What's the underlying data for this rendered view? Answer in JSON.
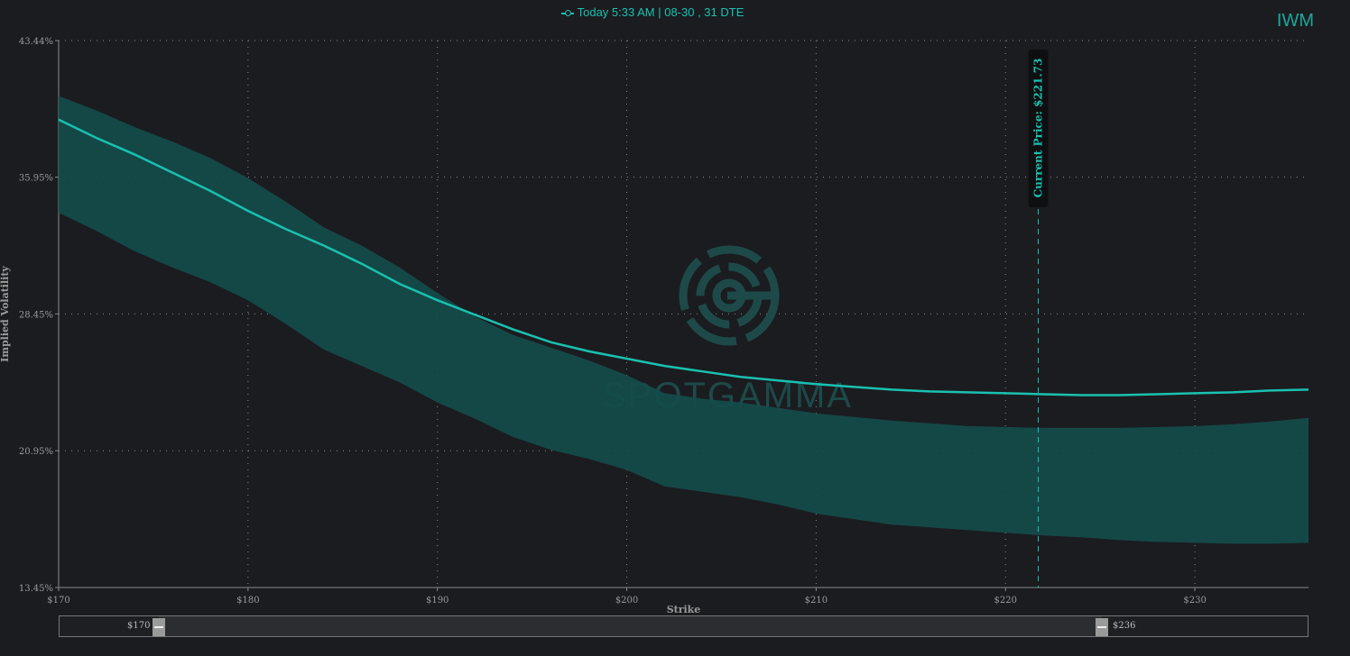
{
  "ticker": "IWM",
  "legend": {
    "label": "Today 5:33 AM | 08-30 , 31 DTE"
  },
  "colors": {
    "line": "#19c1b0",
    "band": "#134c4b",
    "grid": "#8a8a8a",
    "text": "#9a9a9a",
    "watermark": "#1d4a49"
  },
  "watermark": {
    "text": "SPOTGAMMA"
  },
  "navigator": {
    "min_label": "$170",
    "max_label": "$236"
  },
  "chart_data": {
    "type": "line",
    "xlabel": "Strike",
    "ylabel": "Implied Volatility",
    "xlim": [
      170,
      236
    ],
    "ylim": [
      13.45,
      43.44
    ],
    "x_ticks": [
      170,
      180,
      190,
      200,
      210,
      220,
      230
    ],
    "x_tick_labels": [
      "$170",
      "$180",
      "$190",
      "$200",
      "$210",
      "$220",
      "$230"
    ],
    "y_ticks": [
      13.45,
      20.95,
      28.45,
      35.95,
      43.44
    ],
    "y_tick_labels": [
      "13.45%",
      "20.95%",
      "28.45%",
      "35.95%",
      "43.44%"
    ],
    "grid": true,
    "current_price": {
      "value": 221.73,
      "label": "Current Price: $221.73"
    },
    "series": [
      {
        "values": [
          [
            170,
            39.1
          ],
          [
            172,
            38.1
          ],
          [
            174,
            37.2
          ],
          [
            176,
            36.2
          ],
          [
            178,
            35.2
          ],
          [
            180,
            34.1
          ],
          [
            182,
            33.1
          ],
          [
            184,
            32.2
          ],
          [
            186,
            31.2
          ],
          [
            188,
            30.1
          ],
          [
            190,
            29.2
          ],
          [
            192,
            28.4
          ],
          [
            194,
            27.6
          ],
          [
            196,
            26.9
          ],
          [
            198,
            26.4
          ],
          [
            200,
            26.0
          ],
          [
            202,
            25.6
          ],
          [
            204,
            25.3
          ],
          [
            206,
            25.0
          ],
          [
            208,
            24.8
          ],
          [
            210,
            24.6
          ],
          [
            212,
            24.45
          ],
          [
            214,
            24.3
          ],
          [
            216,
            24.2
          ],
          [
            218,
            24.15
          ],
          [
            220,
            24.1
          ],
          [
            222,
            24.05
          ],
          [
            224,
            24.0
          ],
          [
            226,
            24.0
          ],
          [
            228,
            24.05
          ],
          [
            230,
            24.1
          ],
          [
            232,
            24.15
          ],
          [
            234,
            24.25
          ],
          [
            236,
            24.3
          ]
        ]
      }
    ],
    "band": {
      "upper": [
        [
          170,
          40.4
        ],
        [
          172,
          39.6
        ],
        [
          174,
          38.7
        ],
        [
          176,
          37.9
        ],
        [
          178,
          37.0
        ],
        [
          180,
          35.9
        ],
        [
          182,
          34.6
        ],
        [
          184,
          33.2
        ],
        [
          186,
          32.2
        ],
        [
          188,
          31.0
        ],
        [
          190,
          29.6
        ],
        [
          192,
          28.3
        ],
        [
          194,
          27.3
        ],
        [
          196,
          26.6
        ],
        [
          198,
          25.9
        ],
        [
          200,
          25.1
        ],
        [
          202,
          24.1
        ],
        [
          204,
          23.8
        ],
        [
          206,
          23.6
        ],
        [
          208,
          23.3
        ],
        [
          210,
          23.0
        ],
        [
          212,
          22.8
        ],
        [
          214,
          22.6
        ],
        [
          216,
          22.45
        ],
        [
          218,
          22.3
        ],
        [
          220,
          22.25
        ],
        [
          222,
          22.2
        ],
        [
          224,
          22.2
        ],
        [
          226,
          22.2
        ],
        [
          228,
          22.25
        ],
        [
          230,
          22.3
        ],
        [
          232,
          22.4
        ],
        [
          234,
          22.55
        ],
        [
          236,
          22.75
        ]
      ],
      "lower": [
        [
          170,
          34.0
        ],
        [
          172,
          33.0
        ],
        [
          174,
          31.9
        ],
        [
          176,
          31.0
        ],
        [
          178,
          30.2
        ],
        [
          180,
          29.2
        ],
        [
          182,
          27.9
        ],
        [
          184,
          26.5
        ],
        [
          186,
          25.6
        ],
        [
          188,
          24.7
        ],
        [
          190,
          23.6
        ],
        [
          192,
          22.7
        ],
        [
          194,
          21.7
        ],
        [
          196,
          21.0
        ],
        [
          198,
          20.5
        ],
        [
          200,
          19.9
        ],
        [
          202,
          19.0
        ],
        [
          204,
          18.7
        ],
        [
          206,
          18.4
        ],
        [
          208,
          18.0
        ],
        [
          210,
          17.5
        ],
        [
          212,
          17.2
        ],
        [
          214,
          16.9
        ],
        [
          216,
          16.75
        ],
        [
          218,
          16.6
        ],
        [
          220,
          16.45
        ],
        [
          222,
          16.3
        ],
        [
          224,
          16.2
        ],
        [
          226,
          16.05
        ],
        [
          228,
          15.95
        ],
        [
          230,
          15.9
        ],
        [
          232,
          15.85
        ],
        [
          234,
          15.85
        ],
        [
          236,
          15.9
        ]
      ]
    }
  }
}
